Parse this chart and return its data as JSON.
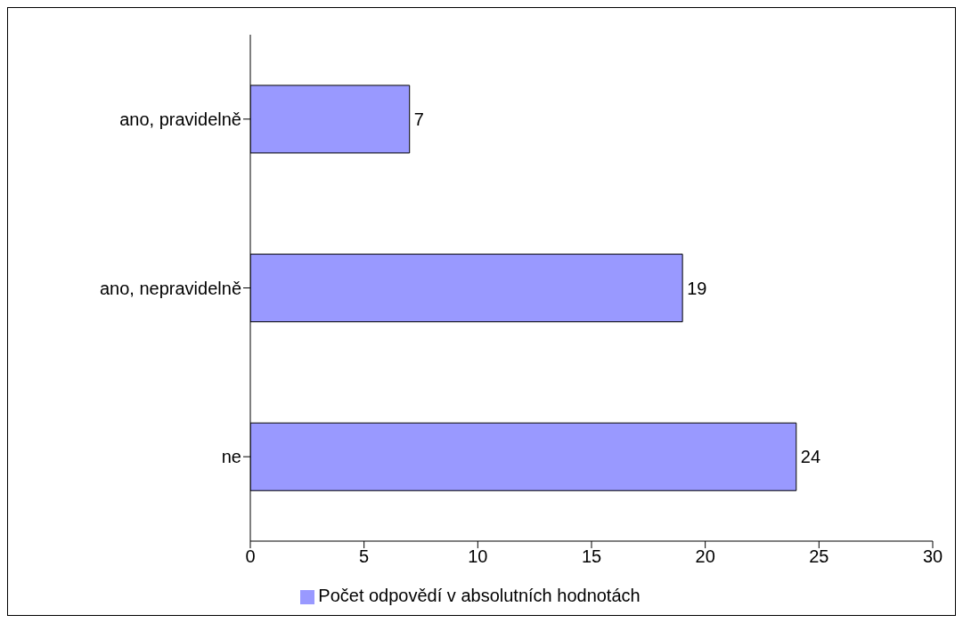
{
  "chart_data": {
    "type": "bar",
    "orientation": "horizontal",
    "categories": [
      "ano, pravidelně",
      "ano, nepravidelně",
      "ne"
    ],
    "series": [
      {
        "name": "Počet odpovědí v absolutních hodnotách",
        "color": "#9999ff",
        "values": [
          7,
          19,
          24
        ]
      }
    ],
    "xlim": [
      0,
      30
    ],
    "xticks": [
      0,
      5,
      10,
      15,
      20,
      25,
      30
    ],
    "data_labels": true,
    "legend": "bottom"
  }
}
